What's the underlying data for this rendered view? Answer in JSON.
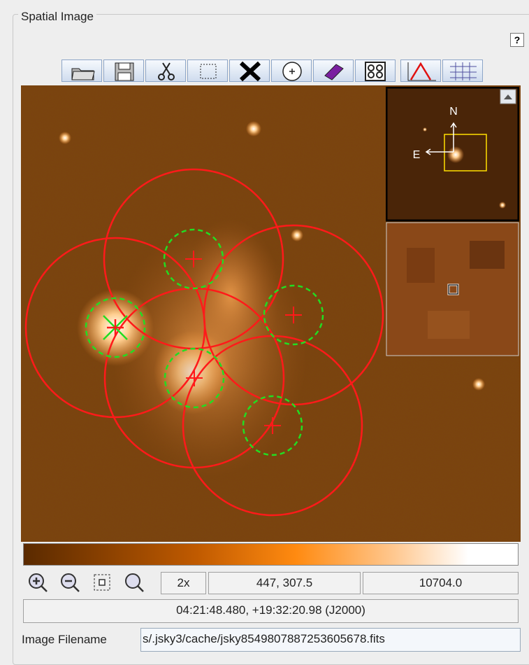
{
  "panel": {
    "title": "Spatial Image",
    "help": "?"
  },
  "compass": {
    "north": "N",
    "east": "E"
  },
  "status": {
    "zoom": "2x",
    "pixel": "447, 307.5",
    "value": "10704.0",
    "world": "04:21:48.480, +19:32:20.98 (J2000)"
  },
  "filename": {
    "label": "Image Filename",
    "value": "s/.jsky3/cache/jsky8549807887253605678.fits"
  }
}
